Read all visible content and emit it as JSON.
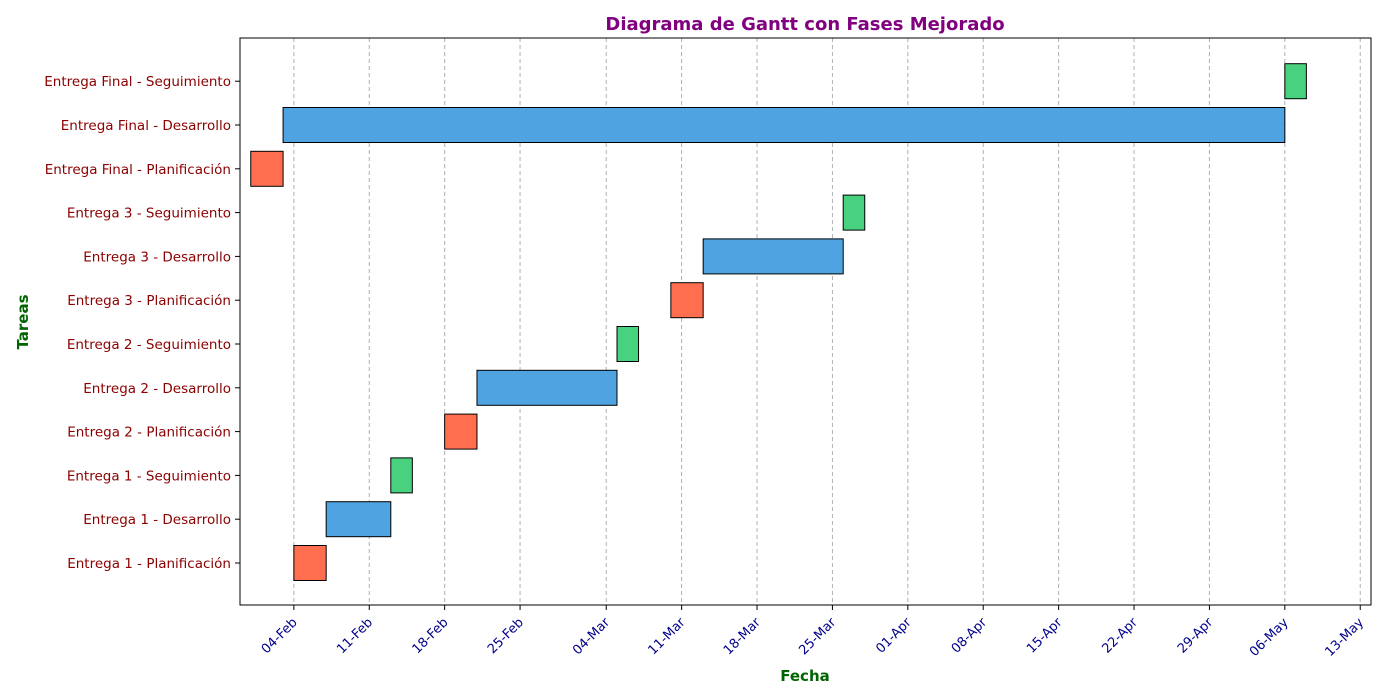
{
  "chart_data": {
    "type": "gantt",
    "title": "Diagrama de Gantt con Fases Mejorado",
    "xlabel": "Fecha",
    "ylabel": "Tareas",
    "xlim": [
      "2024-01-30",
      "2024-05-14"
    ],
    "x_ticks": [
      "04-Feb",
      "11-Feb",
      "18-Feb",
      "25-Feb",
      "04-Mar",
      "11-Mar",
      "18-Mar",
      "25-Mar",
      "01-Apr",
      "08-Apr",
      "15-Apr",
      "22-Apr",
      "29-Apr",
      "06-May",
      "13-May"
    ],
    "x_tick_dates": [
      "2024-02-04",
      "2024-02-11",
      "2024-02-18",
      "2024-02-25",
      "2024-03-04",
      "2024-03-11",
      "2024-03-18",
      "2024-03-25",
      "2024-04-01",
      "2024-04-08",
      "2024-04-15",
      "2024-04-22",
      "2024-04-29",
      "2024-05-06",
      "2024-05-13"
    ],
    "grid": "x-dashed",
    "colors": {
      "planificacion": "#ff6f4f",
      "desarrollo": "#4fa3e0",
      "seguimiento": "#48d17f",
      "title": "#800080",
      "axis_label": "#006400",
      "ytick": "#8b0000",
      "xtick": "#00008b"
    },
    "tasks": [
      {
        "label": "Entrega 1 - Planificación",
        "phase": "planificacion",
        "start": "2024-02-04",
        "end": "2024-02-07"
      },
      {
        "label": "Entrega 1 - Desarrollo",
        "phase": "desarrollo",
        "start": "2024-02-07",
        "end": "2024-02-13"
      },
      {
        "label": "Entrega 1 - Seguimiento",
        "phase": "seguimiento",
        "start": "2024-02-13",
        "end": "2024-02-15"
      },
      {
        "label": "Entrega 2 - Planificación",
        "phase": "planificacion",
        "start": "2024-02-18",
        "end": "2024-02-21"
      },
      {
        "label": "Entrega 2 - Desarrollo",
        "phase": "desarrollo",
        "start": "2024-02-21",
        "end": "2024-03-05"
      },
      {
        "label": "Entrega 2 - Seguimiento",
        "phase": "seguimiento",
        "start": "2024-03-05",
        "end": "2024-03-07"
      },
      {
        "label": "Entrega 3 - Planificación",
        "phase": "planificacion",
        "start": "2024-03-10",
        "end": "2024-03-13"
      },
      {
        "label": "Entrega 3 - Desarrollo",
        "phase": "desarrollo",
        "start": "2024-03-13",
        "end": "2024-03-26"
      },
      {
        "label": "Entrega 3 - Seguimiento",
        "phase": "seguimiento",
        "start": "2024-03-26",
        "end": "2024-03-28"
      },
      {
        "label": "Entrega Final - Planificación",
        "phase": "planificacion",
        "start": "2024-01-31",
        "end": "2024-02-03"
      },
      {
        "label": "Entrega Final - Desarrollo",
        "phase": "desarrollo",
        "start": "2024-02-03",
        "end": "2024-05-06"
      },
      {
        "label": "Entrega Final - Seguimiento",
        "phase": "seguimiento",
        "start": "2024-05-06",
        "end": "2024-05-08"
      }
    ]
  }
}
